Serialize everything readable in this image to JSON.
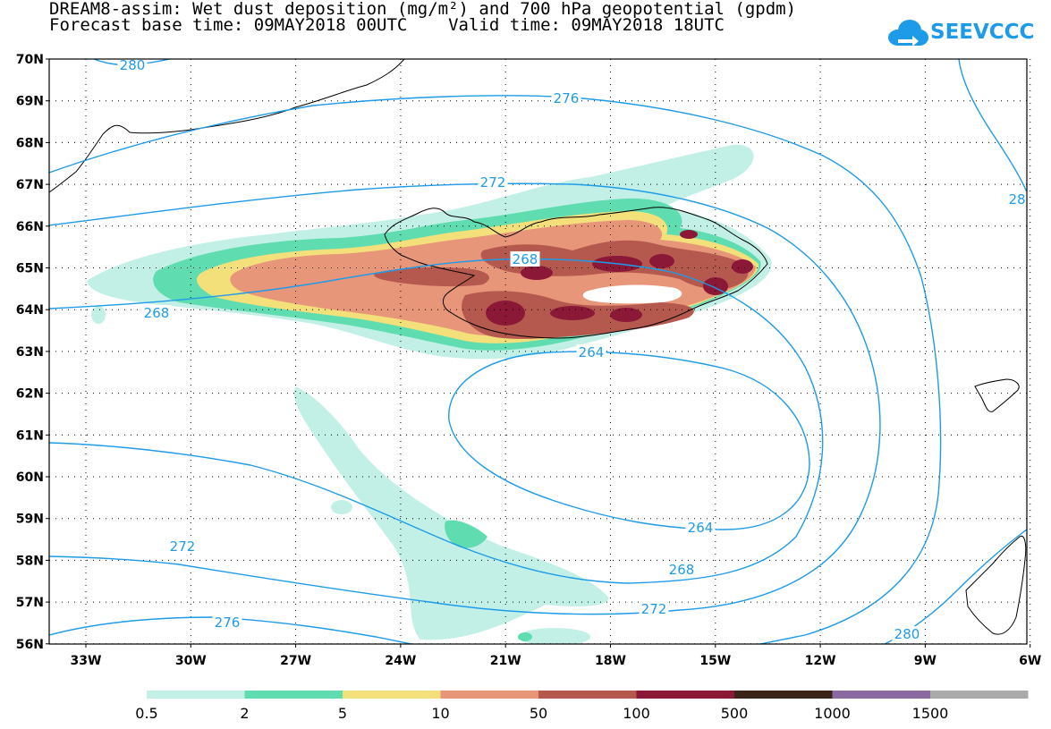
{
  "title": {
    "line1": "DREAM8-assim: Wet dust deposition (mg/m²) and 700 hPa geopotential (gpdm)",
    "line2": "Forecast base time: 09MAY2018 00UTC    Valid time: 09MAY2018 18UTC"
  },
  "logo": {
    "text": "SEEVCCC",
    "color": "#1e9be8"
  },
  "axes": {
    "latitude_labels": [
      "70N",
      "69N",
      "68N",
      "67N",
      "66N",
      "65N",
      "64N",
      "63N",
      "62N",
      "61N",
      "60N",
      "59N",
      "58N",
      "57N",
      "56N"
    ],
    "longitude_labels": [
      "33W",
      "30W",
      "27W",
      "24W",
      "21W",
      "18W",
      "15W",
      "12W",
      "9W",
      "6W"
    ]
  },
  "contours": {
    "color": "#1e9be8",
    "labels": [
      "280",
      "276",
      "272",
      "268",
      "268",
      "264",
      "264",
      "268",
      "272",
      "272",
      "276",
      "280",
      "28"
    ]
  },
  "colorbar": {
    "colors": [
      "#c2f0e6",
      "#5fdcb0",
      "#f4e07a",
      "#e8967a",
      "#b5584e",
      "#8c1838",
      "#3a2418",
      "#8a6aa0",
      "#aaaaaa"
    ],
    "tick_labels": [
      "0.5",
      "2",
      "5",
      "10",
      "50",
      "100",
      "500",
      "1000",
      "1500"
    ]
  }
}
